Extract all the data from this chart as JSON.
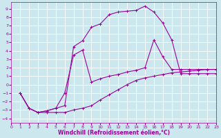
{
  "xlabel": "Windchill (Refroidissement éolien,°C)",
  "background_color": "#cce8ee",
  "grid_color": "#ffffff",
  "line_color": "#990099",
  "xlim": [
    0,
    23
  ],
  "ylim": [
    -4.5,
    9.8
  ],
  "xticks": [
    0,
    1,
    2,
    3,
    4,
    5,
    6,
    7,
    8,
    9,
    10,
    11,
    12,
    13,
    14,
    15,
    16,
    17,
    18,
    19,
    20,
    21,
    22,
    23
  ],
  "yticks": [
    -4,
    -3,
    -2,
    -1,
    0,
    1,
    2,
    3,
    4,
    5,
    6,
    7,
    8,
    9
  ],
  "line1_x": [
    1,
    2,
    3,
    4,
    5,
    6,
    7,
    8,
    9,
    10,
    11,
    12,
    13,
    14,
    15,
    16,
    17,
    18,
    19,
    20,
    21,
    22,
    23
  ],
  "line1_y": [
    -1.0,
    -2.8,
    -3.3,
    -3.3,
    -3.3,
    -3.3,
    -3.0,
    -2.8,
    -2.5,
    -1.8,
    -1.2,
    -0.6,
    0.0,
    0.5,
    0.8,
    1.0,
    1.2,
    1.4,
    1.5,
    1.6,
    1.7,
    1.8,
    1.8
  ],
  "line2_x": [
    1,
    2,
    3,
    4,
    5,
    6,
    7,
    8,
    9,
    10,
    11,
    12,
    13,
    14,
    15,
    16,
    17,
    18,
    19,
    20,
    21,
    22,
    23
  ],
  "line2_y": [
    -1.0,
    -2.8,
    -3.3,
    -3.1,
    -2.8,
    -2.5,
    4.5,
    5.2,
    6.8,
    7.2,
    8.3,
    8.6,
    8.7,
    8.8,
    9.3,
    8.6,
    7.3,
    5.3,
    1.3,
    1.3,
    1.3,
    1.3,
    1.3
  ],
  "line3_x": [
    1,
    2,
    3,
    4,
    5,
    6,
    7,
    8,
    9,
    10,
    11,
    12,
    13,
    14,
    15,
    16,
    17,
    18,
    19,
    20,
    21,
    22,
    23
  ],
  "line3_y": [
    -1.0,
    -2.8,
    -3.3,
    -3.1,
    -2.8,
    -1.0,
    3.5,
    4.1,
    0.3,
    0.7,
    1.0,
    1.2,
    1.5,
    1.7,
    2.0,
    5.3,
    3.3,
    1.8,
    1.8,
    1.8,
    1.8,
    1.8,
    1.8
  ]
}
